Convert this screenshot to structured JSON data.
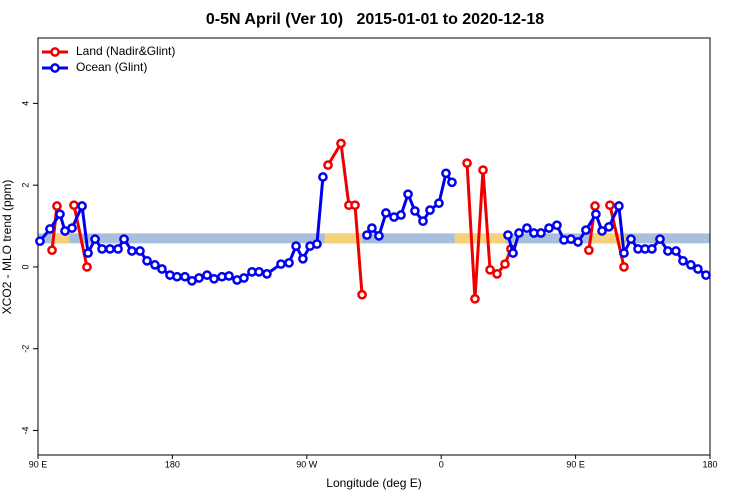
{
  "chart_data": {
    "type": "line",
    "title": "0-5N April (Ver 10)   2015-01-01 to 2020-12-18",
    "xlabel": "Longitude (deg E)",
    "ylabel": "XCO2 - MLO trend (ppm)",
    "xlim": [
      90,
      540
    ],
    "xticks": [
      {
        "value": 90,
        "label": "90 E"
      },
      180,
      {
        "value": 270,
        "label": "90 W"
      },
      {
        "value": 360,
        "label": "0"
      },
      {
        "value": 450,
        "label": "90 E"
      },
      {
        "value": 540,
        "label": "180"
      }
    ],
    "ylim": [
      -4.6,
      5.6
    ],
    "yticks": [
      -4,
      -2,
      0,
      2,
      4
    ],
    "legend": "top-left",
    "band": {
      "y": 0.7,
      "color": "#a7bfdc",
      "highlight_color": "#f5d27a",
      "highlights": [
        [
          99,
          111
        ],
        [
          282,
          307
        ],
        [
          369,
          403
        ],
        [
          460,
          483
        ]
      ]
    },
    "series": [
      {
        "name": "Land (Nadir&Glint)",
        "color": "#ee0000",
        "x": [
          99.4,
          102.7,
          108,
          114.1,
          122.8,
          200,
          284.2,
          292.9,
          298.2,
          302.3,
          307.0,
          380,
          377.3,
          382.6,
          388.0,
          392.7,
          397.4,
          402.7,
          406.7,
          450,
          458.9,
          463.0,
          467,
          473.0,
          482.4
        ],
        "values": [
          0.41,
          1.49,
          null,
          1.51,
          0.0,
          null,
          2.49,
          3.02,
          1.51,
          1.51,
          -0.68,
          null,
          2.54,
          -0.78,
          2.37,
          -0.07,
          -0.17,
          0.07,
          0.44,
          null,
          0.41,
          1.49,
          null,
          1.51,
          0.0
        ]
      },
      {
        "name": "Ocean (Glint)",
        "color": "#0000ee",
        "x": [
          91.3,
          98.0,
          104.7,
          108.1,
          112.8,
          119.5,
          123.5,
          128.2,
          132.9,
          138.2,
          143.6,
          147.6,
          152.9,
          158.3,
          163.0,
          168.3,
          173.0,
          178.4,
          183.1,
          188.4,
          193.1,
          197.8,
          203.2,
          207.9,
          213.2,
          217.9,
          223.3,
          227.9,
          233.3,
          238.0,
          243.3,
          252.7,
          258.1,
          262.8,
          267.4,
          272.2,
          276.8,
          280.8,
          300,
          310.3,
          313.6,
          318.3,
          323.0,
          328.4,
          333.1,
          337.8,
          342.4,
          347.8,
          352.5,
          358.5,
          363.2,
          367.2,
          400,
          404.7,
          408.1,
          412.1,
          417.4,
          422.1,
          426.8,
          432.2,
          437.5,
          442.2,
          446.9,
          451.6,
          456.9,
          463.6,
          467.7,
          472.3,
          479.0,
          482.4,
          487.1,
          491.8,
          496.5,
          501.1,
          506.5,
          511.8,
          517.2,
          521.9,
          527.2,
          531.9,
          537.3
        ],
        "values": [
          0.63,
          0.93,
          1.29,
          0.88,
          0.95,
          1.49,
          0.34,
          0.68,
          0.44,
          0.44,
          0.44,
          0.68,
          0.39,
          0.39,
          0.15,
          0.05,
          -0.05,
          -0.2,
          -0.24,
          -0.24,
          -0.34,
          -0.27,
          -0.2,
          -0.29,
          -0.24,
          -0.22,
          -0.32,
          -0.27,
          -0.12,
          -0.12,
          -0.17,
          0.07,
          0.1,
          0.51,
          0.2,
          0.51,
          0.56,
          2.2,
          null,
          0.78,
          0.95,
          0.76,
          1.32,
          1.22,
          1.27,
          1.78,
          1.37,
          1.12,
          1.39,
          1.56,
          2.29,
          2.07,
          null,
          0.78,
          0.34,
          0.83,
          0.95,
          0.83,
          0.83,
          0.95,
          1.02,
          0.66,
          0.68,
          0.61,
          0.9,
          1.29,
          0.88,
          0.98,
          1.49,
          0.34,
          0.68,
          0.44,
          0.44,
          0.44,
          0.68,
          0.39,
          0.39,
          0.15,
          0.05,
          -0.05,
          -0.2
        ]
      }
    ]
  }
}
